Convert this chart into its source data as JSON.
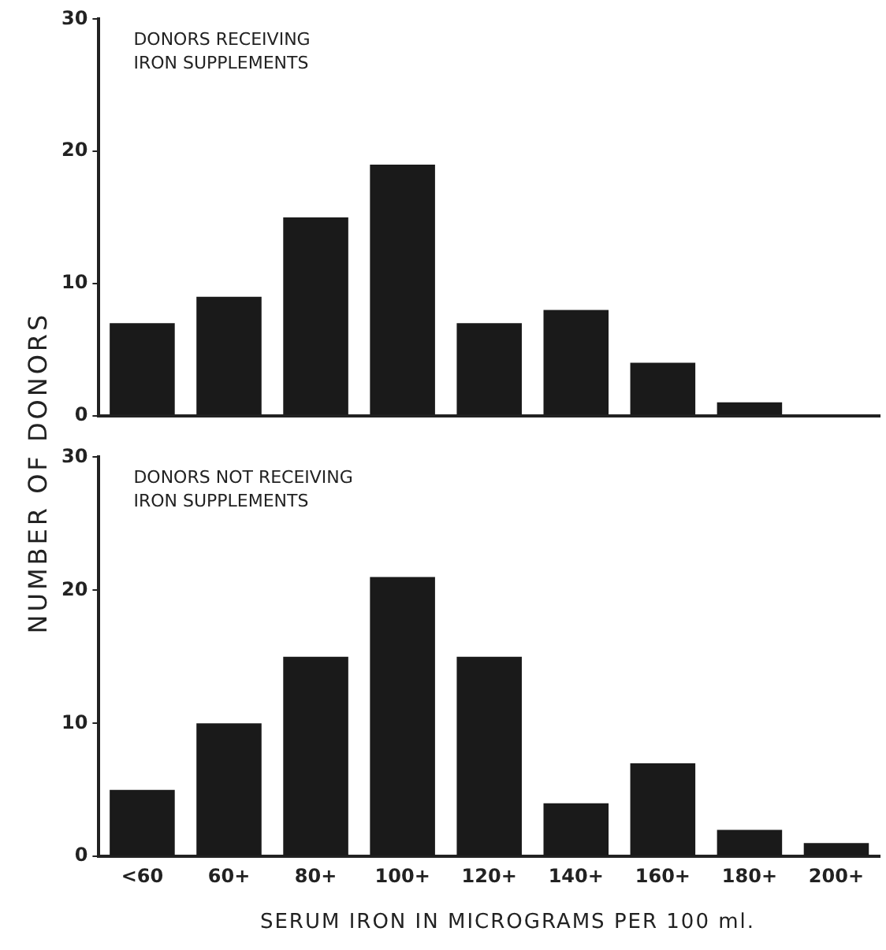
{
  "chart_data": [
    {
      "type": "bar",
      "ylabel": "NUMBER OF DONORS",
      "annotations": [
        "DONORS RECEIVING\nIRON SUPPLEMENTS"
      ],
      "categories": [
        null,
        null,
        null,
        null,
        null,
        null,
        null,
        null,
        null
      ],
      "values": [
        7,
        9,
        15,
        19,
        7,
        8,
        4,
        1,
        0
      ],
      "color": "#1a1a1a",
      "ylim": [
        0,
        30
      ],
      "yticks": [
        0,
        10,
        20,
        30
      ],
      "tick_labels": "y",
      "legend": false
    },
    {
      "type": "bar",
      "xlabel": "SERUM IRON IN MICROGRAMS PER 100 ml.",
      "annotations": [
        "DONORS NOT RECEIVING\nIRON SUPPLEMENTS"
      ],
      "categories": [
        "<60",
        "60+",
        "80+",
        "100+",
        "120+",
        "140+",
        "160+",
        "180+",
        "200+"
      ],
      "values": [
        5,
        10,
        15,
        21,
        15,
        4,
        7,
        2,
        1
      ],
      "color": "#1a1a1a",
      "ylim": [
        0,
        30
      ],
      "yticks": [
        0,
        10,
        20,
        30
      ],
      "legend": false
    }
  ]
}
